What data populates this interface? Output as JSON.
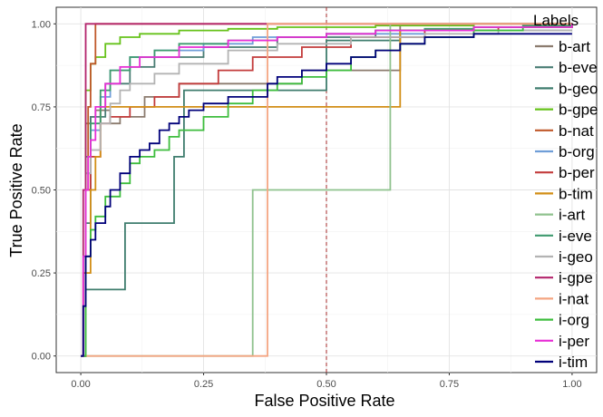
{
  "chart_data": {
    "type": "line",
    "xlabel": "False Positive Rate",
    "ylabel": "True Positive Rate",
    "xlim": [
      -0.05,
      1.05
    ],
    "ylim": [
      -0.05,
      1.05
    ],
    "xticks": [
      0,
      0.25,
      0.5,
      0.75,
      1
    ],
    "yticks": [
      0,
      0.25,
      0.5,
      0.75,
      1
    ],
    "xtick_labels": [
      "0.00",
      "0.25",
      "0.50",
      "0.75",
      "1.00"
    ],
    "ytick_labels": [
      "0.00",
      "0.25",
      "0.50",
      "0.75",
      "1.00"
    ],
    "grid": true,
    "reference_line": {
      "x": 0.5,
      "color": "#a52a2a",
      "style": "dashed"
    },
    "legend": {
      "title": "Labels",
      "placement": "right"
    },
    "series": [
      {
        "name": "b-art",
        "color": "#8b7b6e",
        "x": [
          0,
          0.01,
          0.01,
          0.02,
          0.03,
          0.06,
          0.08,
          0.13,
          0.13,
          0.2,
          0.45,
          0.65,
          0.65,
          0.8,
          1.0
        ],
        "y": [
          0,
          0,
          0.7,
          0.72,
          0.74,
          0.7,
          0.72,
          0.72,
          0.78,
          0.82,
          0.86,
          0.86,
          1.0,
          1.0,
          1.0
        ]
      },
      {
        "name": "b-eve",
        "color": "#4a7d74",
        "x": [
          0,
          0.01,
          0.02,
          0.02,
          0.05,
          0.1,
          0.15,
          0.25,
          0.4,
          0.6,
          0.8,
          1.0
        ],
        "y": [
          0,
          0.4,
          0.6,
          0.72,
          0.82,
          0.87,
          0.9,
          0.93,
          0.96,
          0.98,
          1.0,
          1.0
        ]
      },
      {
        "name": "b-geo",
        "color": "#3f7d6e",
        "x": [
          0,
          0.01,
          0.02,
          0.02,
          0.05,
          0.05,
          0.09,
          0.09,
          0.14,
          0.19,
          0.19,
          0.21,
          0.21,
          0.35,
          0.5,
          0.65,
          0.8,
          1.0
        ],
        "y": [
          0,
          0.2,
          0.2,
          0.2,
          0.2,
          0.2,
          0.2,
          0.4,
          0.4,
          0.4,
          0.6,
          0.6,
          0.8,
          0.8,
          0.95,
          0.98,
          0.98,
          0.98
        ]
      },
      {
        "name": "b-gpe",
        "color": "#66c21a",
        "x": [
          0,
          0.01,
          0.02,
          0.03,
          0.05,
          0.08,
          0.12,
          0.2,
          0.3,
          0.4,
          0.6,
          0.8,
          1.0
        ],
        "y": [
          0,
          0.8,
          0.88,
          0.9,
          0.94,
          0.96,
          0.97,
          0.98,
          0.985,
          0.99,
          0.995,
          1.0,
          1.0
        ]
      },
      {
        "name": "b-nat",
        "color": "#c0582a",
        "x": [
          0,
          0.005,
          0.01,
          0.015,
          0.02,
          0.03,
          0.03,
          1.0
        ],
        "y": [
          0,
          0.25,
          0.5,
          0.75,
          0.88,
          0.9,
          1.0,
          1.0
        ]
      },
      {
        "name": "b-org",
        "color": "#6f9ed8",
        "x": [
          0,
          0.01,
          0.02,
          0.04,
          0.06,
          0.1,
          0.15,
          0.25,
          0.35,
          0.5,
          0.7,
          0.9,
          1.0
        ],
        "y": [
          0,
          0.55,
          0.68,
          0.78,
          0.86,
          0.9,
          0.92,
          0.94,
          0.96,
          0.97,
          0.98,
          0.99,
          1.0
        ]
      },
      {
        "name": "b-per",
        "color": "#c33c3c",
        "x": [
          0,
          0.01,
          0.02,
          0.04,
          0.06,
          0.1,
          0.15,
          0.2,
          0.28,
          0.35,
          0.45,
          0.55,
          0.7,
          0.85,
          1.0
        ],
        "y": [
          0,
          0.5,
          0.6,
          0.7,
          0.72,
          0.75,
          0.78,
          0.82,
          0.86,
          0.9,
          0.93,
          0.96,
          0.98,
          0.99,
          1.0
        ]
      },
      {
        "name": "b-tim",
        "color": "#d28e16",
        "x": [
          0,
          0.01,
          0.02,
          0.02,
          0.03,
          0.04,
          0.04,
          0.65,
          0.65,
          0.8,
          1.0
        ],
        "y": [
          0,
          0.25,
          0.25,
          0.5,
          0.6,
          0.6,
          0.75,
          0.75,
          0.98,
          0.99,
          1.0
        ]
      },
      {
        "name": "i-art",
        "color": "#8fc28e",
        "x": [
          0,
          0.35,
          0.35,
          0.35,
          0.63,
          0.63,
          0.8,
          1.0
        ],
        "y": [
          0,
          0,
          0,
          0.5,
          0.5,
          1.0,
          1.0,
          1.0
        ]
      },
      {
        "name": "i-eve",
        "color": "#3e9a6e",
        "x": [
          0,
          0.01,
          0.02,
          0.04,
          0.06,
          0.1,
          0.15,
          0.2,
          0.3,
          0.4,
          0.5,
          0.6,
          0.7,
          0.8,
          0.9,
          1.0
        ],
        "y": [
          0,
          0.6,
          0.7,
          0.8,
          0.86,
          0.9,
          0.92,
          0.94,
          0.95,
          0.96,
          0.97,
          0.98,
          0.985,
          0.99,
          0.995,
          1.0
        ]
      },
      {
        "name": "i-geo",
        "color": "#b3b3b3",
        "x": [
          0,
          0.01,
          0.02,
          0.04,
          0.06,
          0.08,
          0.1,
          0.15,
          0.2,
          0.3,
          0.4,
          0.55,
          0.7,
          0.85,
          1.0
        ],
        "y": [
          0,
          0.55,
          0.62,
          0.7,
          0.76,
          0.8,
          0.82,
          0.85,
          0.88,
          0.92,
          0.94,
          0.96,
          0.97,
          0.98,
          0.98
        ]
      },
      {
        "name": "i-gpe",
        "color": "#b3246c",
        "x": [
          0,
          0.005,
          0.01,
          0.01,
          0.02,
          0.02,
          0.04,
          0.1,
          0.2,
          0.3,
          0.5,
          0.7,
          1.0
        ],
        "y": [
          0,
          0.5,
          0.75,
          1.0,
          1.0,
          1.0,
          1.0,
          1.0,
          1.0,
          1.0,
          1.0,
          1.0,
          1.0
        ]
      },
      {
        "name": "i-nat",
        "color": "#f4a582",
        "x": [
          0,
          0.38,
          0.38,
          0.5,
          0.7,
          1.0
        ],
        "y": [
          0,
          0,
          1.0,
          1.0,
          1.0,
          1.0
        ]
      },
      {
        "name": "i-org",
        "color": "#3ebd3e",
        "x": [
          0,
          0.01,
          0.02,
          0.03,
          0.05,
          0.08,
          0.1,
          0.12,
          0.15,
          0.18,
          0.2,
          0.25,
          0.3,
          0.35,
          0.4,
          0.45,
          0.5,
          0.55,
          0.6,
          0.65,
          0.7,
          0.8,
          0.9,
          1.0
        ],
        "y": [
          0,
          0.3,
          0.38,
          0.42,
          0.48,
          0.52,
          0.58,
          0.6,
          0.62,
          0.66,
          0.68,
          0.72,
          0.76,
          0.8,
          0.82,
          0.84,
          0.86,
          0.9,
          0.92,
          0.94,
          0.96,
          0.98,
          0.99,
          1.0
        ]
      },
      {
        "name": "i-per",
        "color": "#e72fd6",
        "x": [
          0,
          0.005,
          0.01,
          0.015,
          0.02,
          0.03,
          0.05,
          0.08,
          0.12,
          0.2,
          0.3,
          0.4,
          0.5,
          0.6,
          0.8,
          1.0
        ],
        "y": [
          0,
          0.3,
          0.5,
          0.6,
          0.65,
          0.75,
          0.82,
          0.87,
          0.9,
          0.93,
          0.95,
          0.96,
          0.97,
          0.98,
          0.99,
          1.0
        ]
      },
      {
        "name": "i-tim",
        "color": "#00007a",
        "x": [
          0,
          0.005,
          0.01,
          0.01,
          0.02,
          0.03,
          0.03,
          0.05,
          0.06,
          0.08,
          0.1,
          0.12,
          0.14,
          0.16,
          0.18,
          0.2,
          0.22,
          0.25,
          0.3,
          0.38,
          0.4,
          0.45,
          0.5,
          0.55,
          0.6,
          0.65,
          0.7,
          0.8,
          0.9,
          1.0
        ],
        "y": [
          0,
          0.15,
          0.28,
          0.3,
          0.35,
          0.38,
          0.4,
          0.45,
          0.5,
          0.55,
          0.6,
          0.62,
          0.64,
          0.68,
          0.7,
          0.72,
          0.74,
          0.76,
          0.78,
          0.82,
          0.84,
          0.86,
          0.88,
          0.9,
          0.92,
          0.94,
          0.96,
          0.97,
          0.97,
          0.97
        ]
      }
    ]
  }
}
